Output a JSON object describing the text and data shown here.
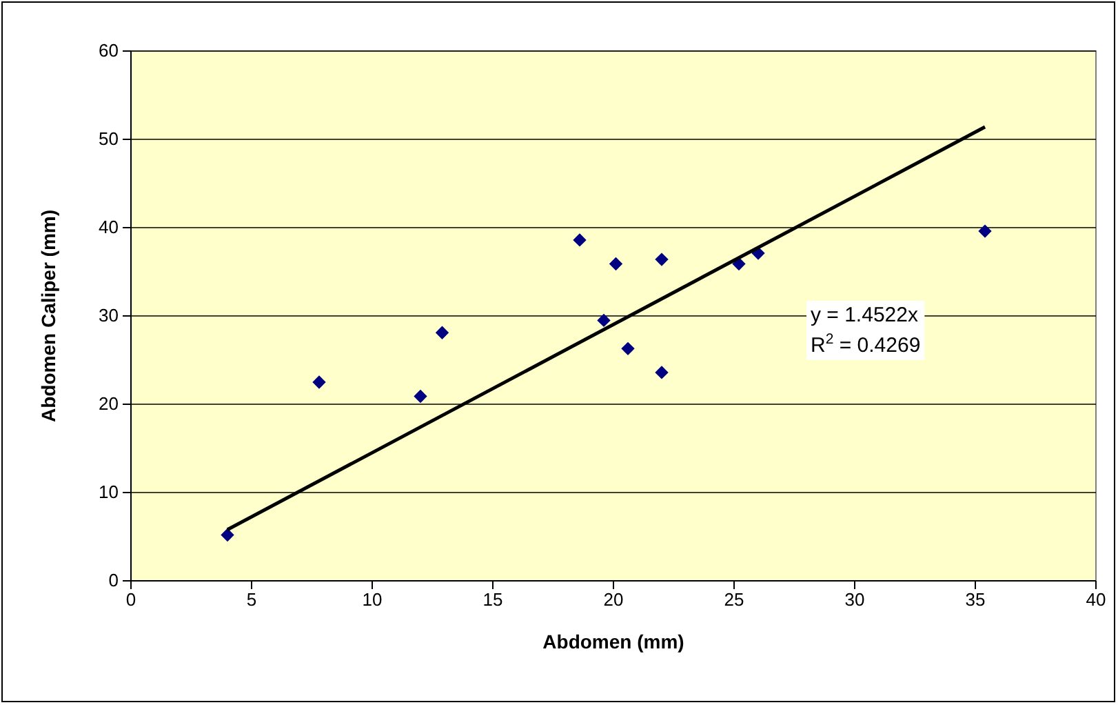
{
  "chart_data": {
    "type": "scatter",
    "xlabel": "Abdomen (mm)",
    "ylabel": "Abdomen Caliper (mm)",
    "xlim": [
      0,
      40
    ],
    "xticks": [
      0,
      5,
      10,
      15,
      20,
      25,
      30,
      35,
      40
    ],
    "ylim": [
      0,
      60
    ],
    "yticks": [
      0,
      10,
      20,
      30,
      40,
      50,
      60
    ],
    "grid": "y",
    "marker": "diamond",
    "series": [
      {
        "color": "#000080",
        "x": [
          4.0,
          7.8,
          12.0,
          12.9,
          18.6,
          19.6,
          20.1,
          20.6,
          22.0,
          22.0,
          25.2,
          26.0,
          35.4
        ],
        "values": [
          5.2,
          22.5,
          20.9,
          28.1,
          38.6,
          29.5,
          35.9,
          26.3,
          36.4,
          23.6,
          35.9,
          37.1,
          39.6
        ]
      },
      {
        "type": "line",
        "marker": "none",
        "color": "#000000",
        "x": [
          4.0,
          35.4
        ],
        "values": [
          5.8,
          51.4
        ]
      }
    ],
    "annotations": [
      "y = 1.4522x",
      "R$^{2}$ = 0.4269"
    ]
  }
}
